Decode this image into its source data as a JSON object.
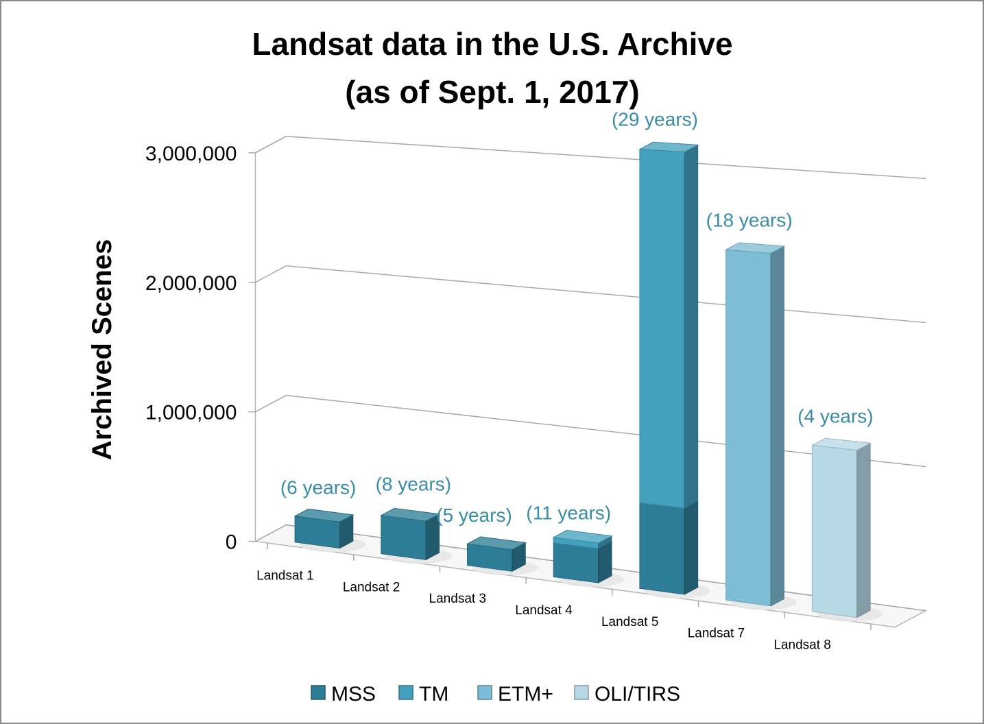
{
  "chart_data": {
    "type": "bar",
    "title_lines": [
      "Landsat data in the U.S. Archive",
      "(as of Sept. 1, 2017)"
    ],
    "xlabel": "",
    "ylabel": "Archived Scenes",
    "ylim": [
      0,
      3000000
    ],
    "yticks": [
      0,
      1000000,
      2000000,
      3000000
    ],
    "ytick_labels": [
      "0",
      "1,000,000",
      "2,000,000",
      "3,000,000"
    ],
    "categories": [
      "Landsat 1",
      "Landsat 2",
      "Landsat 3",
      "Landsat 4",
      "Landsat 5",
      "Landsat 7",
      "Landsat 8"
    ],
    "series": [
      {
        "name": "MSS",
        "color": "#2e7d96",
        "values": [
          200000,
          290000,
          160000,
          250000,
          620000,
          0,
          0
        ]
      },
      {
        "name": "TM",
        "color": "#44a1be",
        "values": [
          0,
          0,
          0,
          40000,
          2560000,
          0,
          0
        ]
      },
      {
        "name": "ETM+",
        "color": "#7dbdd5",
        "values": [
          0,
          0,
          0,
          0,
          0,
          2500000,
          0
        ]
      },
      {
        "name": "OLI/TIRS",
        "color": "#b7d9e6",
        "values": [
          0,
          0,
          0,
          0,
          0,
          0,
          1170000
        ]
      }
    ],
    "data_labels": [
      "(6 years)",
      "(8 years)",
      "(5 years)",
      "(11 years)",
      "(29 years)",
      "(18 years)",
      "(4 years)"
    ],
    "grid": true,
    "legend_position": "bottom"
  }
}
